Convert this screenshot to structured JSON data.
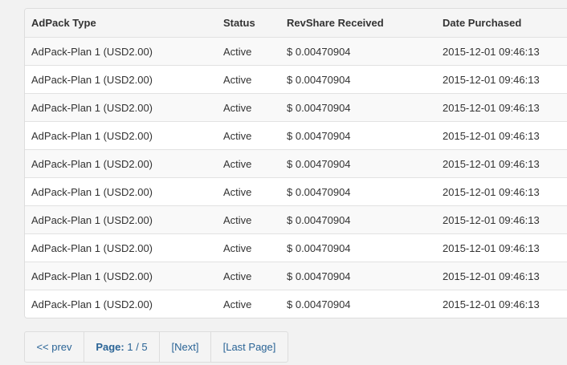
{
  "table": {
    "headers": [
      "AdPack Type",
      "Status",
      "RevShare Received",
      "Date Purchased"
    ],
    "rows": [
      [
        "AdPack-Plan 1 (USD2.00)",
        "Active",
        "$ 0.00470904",
        "2015-12-01 09:46:13"
      ],
      [
        "AdPack-Plan 1 (USD2.00)",
        "Active",
        "$ 0.00470904",
        "2015-12-01 09:46:13"
      ],
      [
        "AdPack-Plan 1 (USD2.00)",
        "Active",
        "$ 0.00470904",
        "2015-12-01 09:46:13"
      ],
      [
        "AdPack-Plan 1 (USD2.00)",
        "Active",
        "$ 0.00470904",
        "2015-12-01 09:46:13"
      ],
      [
        "AdPack-Plan 1 (USD2.00)",
        "Active",
        "$ 0.00470904",
        "2015-12-01 09:46:13"
      ],
      [
        "AdPack-Plan 1 (USD2.00)",
        "Active",
        "$ 0.00470904",
        "2015-12-01 09:46:13"
      ],
      [
        "AdPack-Plan 1 (USD2.00)",
        "Active",
        "$ 0.00470904",
        "2015-12-01 09:46:13"
      ],
      [
        "AdPack-Plan 1 (USD2.00)",
        "Active",
        "$ 0.00470904",
        "2015-12-01 09:46:13"
      ],
      [
        "AdPack-Plan 1 (USD2.00)",
        "Active",
        "$ 0.00470904",
        "2015-12-01 09:46:13"
      ],
      [
        "AdPack-Plan 1 (USD2.00)",
        "Active",
        "$ 0.00470904",
        "2015-12-01 09:46:13"
      ]
    ]
  },
  "pager": {
    "prev": "<< prev",
    "page_label": "Page:",
    "page_value": "1 / 5",
    "next": "[Next]",
    "last": "[Last Page]"
  }
}
